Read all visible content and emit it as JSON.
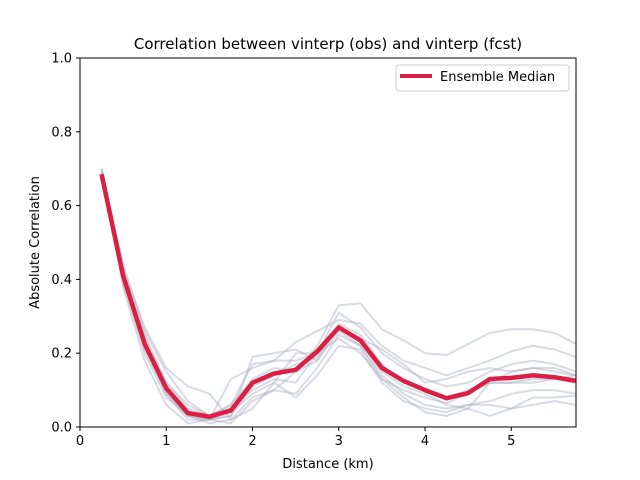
{
  "chart_data": {
    "type": "line",
    "title": "Correlation between vinterp (obs) and vinterp (fcst)",
    "xlabel": "Distance (km)",
    "ylabel": "Absolute Correlation",
    "xlim": [
      0,
      5.75
    ],
    "ylim": [
      0,
      1.0
    ],
    "xticks": [
      0,
      1,
      2,
      3,
      4,
      5
    ],
    "yticks": [
      0.0,
      0.2,
      0.4,
      0.6,
      0.8,
      1.0
    ],
    "xtick_labels": [
      "0",
      "1",
      "2",
      "3",
      "4",
      "5"
    ],
    "ytick_labels": [
      "0.0",
      "0.2",
      "0.4",
      "0.6",
      "0.8",
      "1.0"
    ],
    "grid": false,
    "legend_position": "top-right",
    "x": [
      0.25,
      0.5,
      0.75,
      1.0,
      1.25,
      1.5,
      1.75,
      2.0,
      2.25,
      2.5,
      2.75,
      3.0,
      3.25,
      3.5,
      3.75,
      4.0,
      4.25,
      4.5,
      4.75,
      5.0,
      5.25,
      5.5,
      5.75
    ],
    "median": {
      "name": "Ensemble Median",
      "color": "#dc1e44",
      "values": [
        0.685,
        0.41,
        0.225,
        0.105,
        0.038,
        0.028,
        0.045,
        0.12,
        0.145,
        0.155,
        0.205,
        0.27,
        0.235,
        0.16,
        0.125,
        0.1,
        0.078,
        0.092,
        0.13,
        0.133,
        0.14,
        0.135,
        0.125
      ]
    },
    "members_color": "#a9afc0",
    "members": [
      [
        0.69,
        0.44,
        0.26,
        0.15,
        0.07,
        0.03,
        0.05,
        0.1,
        0.13,
        0.12,
        0.2,
        0.31,
        0.27,
        0.2,
        0.16,
        0.13,
        0.11,
        0.12,
        0.15,
        0.17,
        0.18,
        0.17,
        0.15
      ],
      [
        0.69,
        0.4,
        0.22,
        0.09,
        0.02,
        0.02,
        0.01,
        0.07,
        0.1,
        0.15,
        0.22,
        0.33,
        0.335,
        0.265,
        0.235,
        0.2,
        0.195,
        0.225,
        0.255,
        0.265,
        0.265,
        0.255,
        0.225
      ],
      [
        0.68,
        0.39,
        0.2,
        0.08,
        0.03,
        0.02,
        0.03,
        0.19,
        0.2,
        0.21,
        0.18,
        0.26,
        0.22,
        0.13,
        0.1,
        0.08,
        0.065,
        0.09,
        0.12,
        0.15,
        0.16,
        0.16,
        0.14
      ],
      [
        0.69,
        0.38,
        0.18,
        0.06,
        0.01,
        0.02,
        0.13,
        0.16,
        0.18,
        0.23,
        0.26,
        0.29,
        0.28,
        0.22,
        0.18,
        0.16,
        0.14,
        0.16,
        0.18,
        0.205,
        0.22,
        0.21,
        0.19
      ],
      [
        0.7,
        0.42,
        0.25,
        0.12,
        0.06,
        0.03,
        0.06,
        0.17,
        0.18,
        0.18,
        0.2,
        0.24,
        0.2,
        0.13,
        0.08,
        0.04,
        0.03,
        0.05,
        0.12,
        0.12,
        0.12,
        0.13,
        0.14
      ],
      [
        0.68,
        0.41,
        0.23,
        0.11,
        0.04,
        0.02,
        0.04,
        0.09,
        0.12,
        0.08,
        0.14,
        0.22,
        0.21,
        0.12,
        0.07,
        0.05,
        0.04,
        0.06,
        0.07,
        0.09,
        0.1,
        0.1,
        0.09
      ],
      [
        0.69,
        0.4,
        0.21,
        0.09,
        0.03,
        0.01,
        0.02,
        0.08,
        0.1,
        0.09,
        0.16,
        0.25,
        0.22,
        0.14,
        0.09,
        0.06,
        0.05,
        0.06,
        0.06,
        0.05,
        0.06,
        0.07,
        0.06
      ],
      [
        0.7,
        0.43,
        0.27,
        0.16,
        0.11,
        0.09,
        0.02,
        0.05,
        0.12,
        0.2,
        0.2,
        0.27,
        0.24,
        0.21,
        0.17,
        0.12,
        0.13,
        0.15,
        0.16,
        0.15,
        0.16,
        0.15,
        0.14
      ],
      [
        0.69,
        0.41,
        0.24,
        0.12,
        0.05,
        0.03,
        0.06,
        0.13,
        0.16,
        0.15,
        0.18,
        0.28,
        0.25,
        0.17,
        0.12,
        0.1,
        0.08,
        0.1,
        0.12,
        0.12,
        0.13,
        0.13,
        0.12
      ],
      [
        0.68,
        0.4,
        0.22,
        0.1,
        0.03,
        0.02,
        0.03,
        0.11,
        0.14,
        0.17,
        0.19,
        0.27,
        0.23,
        0.15,
        0.11,
        0.09,
        0.06,
        0.05,
        0.03,
        0.05,
        0.08,
        0.08,
        0.085
      ]
    ]
  }
}
